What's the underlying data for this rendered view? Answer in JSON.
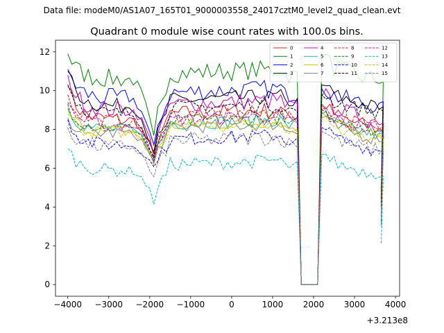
{
  "chart_data": {
    "type": "line",
    "suptitle": "Data file: modeM0/AS1A07_165T01_9000003558_24017cztM0_level2_quad_clean.evt",
    "title": "Quadrant 0 module wise count rates with 100.0s bins.",
    "xlabel": "",
    "ylabel": "",
    "offset_text": "+3.213e8",
    "xlim": [
      -4300,
      4100
    ],
    "ylim": [
      -0.6,
      12.6
    ],
    "xticks": [
      -4000,
      -3000,
      -2000,
      -1000,
      0,
      1000,
      2000,
      3000,
      4000
    ],
    "xtick_labels": [
      "−4000",
      "−3000",
      "−2000",
      "−1000",
      "0",
      "1000",
      "2000",
      "3000",
      "4000"
    ],
    "yticks": [
      0,
      2,
      4,
      6,
      8,
      10,
      12
    ],
    "ytick_labels": [
      "0",
      "2",
      "4",
      "6",
      "8",
      "10",
      "12"
    ],
    "legend_position": "top-right",
    "gap_start": 1650,
    "gap_end": 2150,
    "series": [
      {
        "name": "0",
        "color": "#d62020",
        "style": "solid",
        "base": 8.5,
        "start": 10.2,
        "dip": 6.6,
        "post": 9.3,
        "end": 8.0,
        "final": 3.5,
        "amp": 0.45
      },
      {
        "name": "1",
        "color": "#008000",
        "style": "solid",
        "base": 10.6,
        "start": 11.9,
        "dip": 7.4,
        "post": 11.7,
        "end": 10.5,
        "final": 4.5,
        "amp": 0.5
      },
      {
        "name": "2",
        "color": "#0000ff",
        "style": "solid",
        "base": 9.6,
        "start": 11.1,
        "dip": 6.9,
        "post": 10.1,
        "end": 9.2,
        "final": 4.4,
        "amp": 0.5
      },
      {
        "name": "3",
        "color": "#000000",
        "style": "solid",
        "base": 9.2,
        "start": 11.0,
        "dip": 6.6,
        "post": 10.3,
        "end": 9.1,
        "final": 4.2,
        "amp": 0.4
      },
      {
        "name": "4",
        "color": "#cc00cc",
        "style": "solid",
        "base": 9.0,
        "start": 10.8,
        "dip": 6.8,
        "post": 9.7,
        "end": 8.4,
        "final": 3.6,
        "amp": 0.45
      },
      {
        "name": "5",
        "color": "#20b2aa",
        "style": "solid",
        "base": 8.0,
        "start": 9.1,
        "dip": 6.4,
        "post": 8.8,
        "end": 7.7,
        "final": 3.3,
        "amp": 0.35
      },
      {
        "name": "6",
        "color": "#c8c800",
        "style": "solid",
        "base": 7.9,
        "start": 9.0,
        "dip": 6.3,
        "post": 8.9,
        "end": 7.6,
        "final": 3.4,
        "amp": 0.35
      },
      {
        "name": "7",
        "color": "#808080",
        "style": "solid",
        "base": 7.8,
        "start": 8.6,
        "dip": 6.2,
        "post": 8.6,
        "end": 7.5,
        "final": 3.2,
        "amp": 0.35
      },
      {
        "name": "8",
        "color": "#d62020",
        "style": "dashed",
        "base": 8.4,
        "start": 9.8,
        "dip": 6.6,
        "post": 9.2,
        "end": 8.1,
        "final": 3.6,
        "amp": 0.4
      },
      {
        "name": "9",
        "color": "#008000",
        "style": "dashed",
        "base": 8.1,
        "start": 9.3,
        "dip": 6.4,
        "post": 9.0,
        "end": 7.9,
        "final": 3.4,
        "amp": 0.35
      },
      {
        "name": "10",
        "color": "#0000ff",
        "style": "dashed",
        "base": 7.2,
        "start": 8.5,
        "dip": 6.0,
        "post": 8.1,
        "end": 6.9,
        "final": 3.1,
        "amp": 0.35
      },
      {
        "name": "11",
        "color": "#000000",
        "style": "dashed",
        "base": 8.8,
        "start": 10.3,
        "dip": 6.5,
        "post": 9.8,
        "end": 8.9,
        "final": 4.0,
        "amp": 0.4
      },
      {
        "name": "12",
        "color": "#cc00cc",
        "style": "dashed",
        "base": 8.2,
        "start": 9.4,
        "dip": 6.5,
        "post": 9.0,
        "end": 7.9,
        "final": 3.5,
        "amp": 0.35
      },
      {
        "name": "13",
        "color": "#00bcbc",
        "style": "dashed",
        "base": 5.9,
        "start": 7.0,
        "dip": 4.3,
        "post": 6.7,
        "end": 5.7,
        "final": 2.1,
        "amp": 0.35
      },
      {
        "name": "14",
        "color": "#c8c800",
        "style": "dashed",
        "base": 7.8,
        "start": 8.8,
        "dip": 6.2,
        "post": 8.6,
        "end": 7.5,
        "final": 3.3,
        "amp": 0.35
      },
      {
        "name": "15",
        "color": "#808080",
        "style": "dashed",
        "base": 7.1,
        "start": 8.1,
        "dip": 5.4,
        "post": 7.9,
        "end": 6.9,
        "final": 3.0,
        "amp": 0.4
      }
    ]
  }
}
